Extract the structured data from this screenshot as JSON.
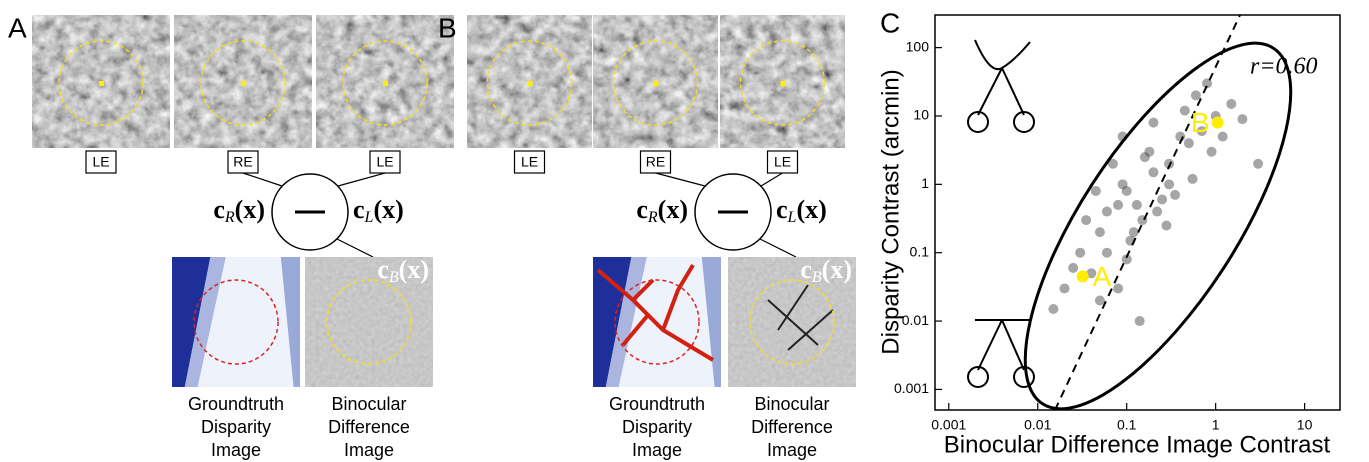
{
  "panels": [
    {
      "letter": "A",
      "eye_labels": [
        "LE",
        "RE",
        "LE"
      ],
      "right_term": {
        "base": "c",
        "sub": "R",
        "arg": "(x)"
      },
      "left_term": {
        "base": "c",
        "sub": "L",
        "arg": "(x)"
      },
      "operator": "—",
      "diff_term": {
        "base": "c",
        "sub": "B",
        "arg": "(x)"
      },
      "captions": [
        [
          "Groundtruth",
          "Disparity",
          "Image"
        ],
        [
          "Binocular",
          "Difference",
          "Image"
        ]
      ]
    },
    {
      "letter": "B",
      "eye_labels": [
        "LE",
        "RE",
        "LE"
      ],
      "right_term": {
        "base": "c",
        "sub": "R",
        "arg": "(x)"
      },
      "left_term": {
        "base": "c",
        "sub": "L",
        "arg": "(x)"
      },
      "operator": "—",
      "diff_term": {
        "base": "c",
        "sub": "B",
        "arg": "(x)"
      },
      "captions": [
        [
          "Groundtruth",
          "Disparity",
          "Image"
        ],
        [
          "Binocular",
          "Difference",
          "Image"
        ]
      ]
    }
  ],
  "chart_data": {
    "type": "scatter",
    "letter": "C",
    "x_label": "Binocular Difference Image Contrast",
    "y_label": "Disparity Contrast (arcmin)",
    "annotation": "r=0.60",
    "xscale": "log",
    "yscale": "log",
    "xlim": [
      0.0007,
      25
    ],
    "ylim": [
      0.0005,
      300
    ],
    "xticks": [
      0.001,
      0.01,
      0.1,
      1,
      10
    ],
    "yticks": [
      0.001,
      0.01,
      0.1,
      1,
      10,
      100
    ],
    "color": "#3a3a3a",
    "x": [
      0.02,
      0.03,
      0.05,
      0.08,
      0.1,
      0.15,
      0.2,
      0.3,
      0.5,
      0.7,
      1,
      1.5,
      2,
      0.04,
      0.06,
      0.09,
      0.12,
      0.18,
      0.25,
      0.4,
      0.6,
      0.9,
      0.05,
      0.07,
      0.1,
      0.13,
      0.2,
      0.3,
      0.45,
      0.035,
      0.015,
      0.025,
      0.06,
      0.11,
      0.22,
      0.35,
      0.8,
      1.2,
      3,
      0.045,
      0.08,
      0.16,
      0.28,
      0.55,
      0.09,
      0.14
    ],
    "values": [
      0.03,
      0.1,
      0.2,
      0.5,
      0.8,
      0.3,
      1.5,
      2,
      4,
      6,
      10,
      15,
      9,
      0.05,
      0.4,
      1,
      0.2,
      3,
      0.6,
      5,
      20,
      3,
      0.02,
      2,
      0.08,
      0.5,
      8,
      1,
      12,
      0.3,
      0.015,
      0.06,
      0.1,
      0.15,
      0.4,
      0.7,
      30,
      5,
      2,
      0.8,
      0.03,
      2.5,
      0.25,
      1.2,
      5,
      0.01
    ],
    "highlights": [
      {
        "label": "A",
        "x": 0.032,
        "y": 0.045,
        "color": "#ffee00"
      },
      {
        "label": "B",
        "x": 1.05,
        "y": 8,
        "color": "#ffee00"
      }
    ]
  }
}
